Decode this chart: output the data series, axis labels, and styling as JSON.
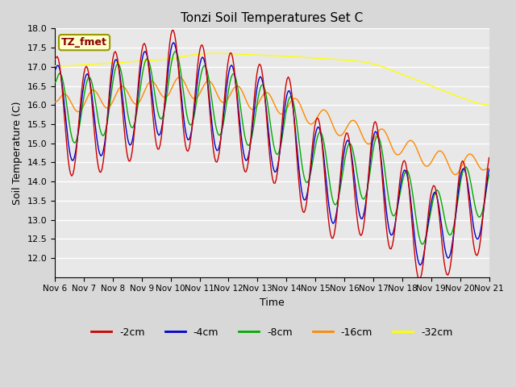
{
  "title": "Tonzi Soil Temperatures Set C",
  "xlabel": "Time",
  "ylabel": "Soil Temperature (C)",
  "ylim": [
    11.5,
    18.0
  ],
  "yticks": [
    12.0,
    12.5,
    13.0,
    13.5,
    14.0,
    14.5,
    15.0,
    15.5,
    16.0,
    16.5,
    17.0,
    17.5,
    18.0
  ],
  "legend_label": "TZ_fmet",
  "colors": {
    "-2cm": "#cc0000",
    "-4cm": "#0000cc",
    "-8cm": "#00aa00",
    "-16cm": "#ff8800",
    "-32cm": "#ffff00"
  },
  "line_width": 1.0,
  "fig_bg": "#d8d8d8",
  "plot_bg": "#e8e8e8",
  "grid_color": "#ffffff",
  "xtick_labels": [
    "Nov 6",
    "Nov 7",
    "Nov 8",
    "Nov 9",
    "Nov 10",
    "Nov 11",
    "Nov 12",
    "Nov 13",
    "Nov 14",
    "Nov 15",
    "Nov 16",
    "Nov 17",
    "Nov 18",
    "Nov 19",
    "Nov 20",
    "Nov 21"
  ],
  "num_points": 360
}
